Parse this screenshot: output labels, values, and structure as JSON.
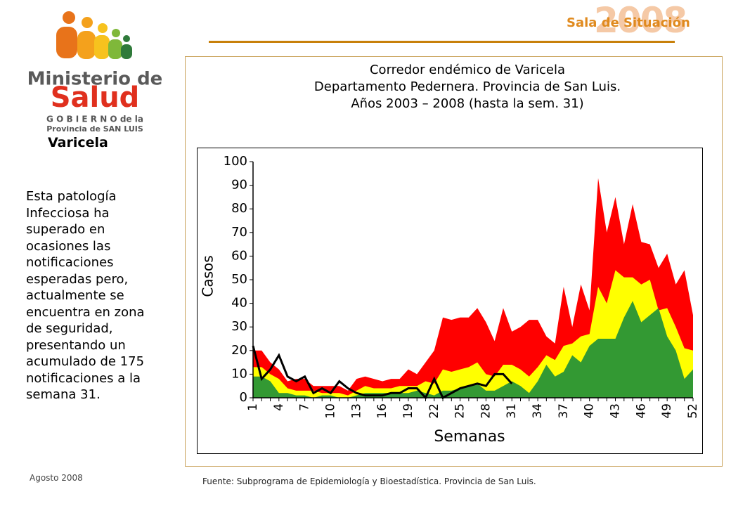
{
  "header": {
    "brand": "Sala de Situación",
    "year": "2008"
  },
  "logo": {
    "line1": "Ministerio de",
    "line2": "Salud",
    "line3": "G O B I E R N O  de la",
    "line4": "Provincia de SAN LUIS"
  },
  "sidebar": {
    "heading": "Varicela",
    "body": [
      "Esta patología",
      "Infecciosa ha",
      "superado en",
      "ocasiones las",
      "notificaciones",
      "esperadas pero,",
      "actualmente se",
      "encuentra en zona",
      "de seguridad,",
      "presentando un",
      "acumulado de 175",
      "notificaciones a la",
      "semana 31."
    ],
    "date": "Agosto 2008"
  },
  "source": "Fuente: Subprograma de Epidemiología y Bioestadística. Provincia de San Luis.",
  "chart_data": {
    "type": "area",
    "title": [
      "Corredor endémico de Varicela",
      "Departamento Pedernera. Provincia de San Luis.",
      "Años 2003 – 2008 (hasta la sem. 31)"
    ],
    "ylabel": "Casos",
    "xlabel": "Semanas",
    "categories": [
      1,
      null,
      null,
      4,
      null,
      null,
      7,
      null,
      null,
      10,
      null,
      null,
      13,
      null,
      null,
      16,
      null,
      null,
      19,
      null,
      null,
      22,
      null,
      null,
      25,
      null,
      null,
      28,
      null,
      null,
      31,
      null,
      null,
      34,
      null,
      null,
      37,
      null,
      null,
      40,
      null,
      null,
      43,
      null,
      null,
      46,
      null,
      null,
      49,
      null,
      null,
      52
    ],
    "ylim": [
      0,
      100
    ],
    "yticks": [
      0,
      10,
      20,
      30,
      40,
      50,
      60,
      70,
      80,
      90,
      100
    ],
    "series": [
      {
        "color": "#ff0000",
        "type": "area",
        "values": [
          20,
          20,
          15,
          12,
          7,
          8,
          8,
          5,
          5,
          5,
          5,
          3,
          8,
          9,
          8,
          7,
          8,
          8,
          12,
          10,
          15,
          20,
          34,
          33,
          34,
          34,
          38,
          32,
          24,
          38,
          28,
          30,
          33,
          33,
          26,
          23,
          47,
          30,
          48,
          37,
          93,
          70,
          85,
          65,
          82,
          66,
          65,
          55,
          61,
          48,
          54,
          35
        ]
      },
      {
        "color": "#ffff00",
        "type": "area",
        "values": [
          13,
          13,
          10,
          8,
          4,
          3,
          3,
          3,
          2,
          2,
          2,
          1,
          3,
          5,
          4,
          4,
          4,
          5,
          5,
          5,
          7,
          6,
          12,
          11,
          12,
          13,
          15,
          10,
          9,
          14,
          14,
          12,
          9,
          13,
          18,
          16,
          22,
          23,
          26,
          27,
          47,
          40,
          54,
          51,
          51,
          48,
          50,
          37,
          38,
          30,
          21,
          20
        ]
      },
      {
        "color": "#339933",
        "type": "area",
        "values": [
          9,
          9,
          7,
          2,
          2,
          1,
          1,
          0,
          1,
          1,
          0,
          0,
          1,
          2,
          2,
          2,
          2,
          2,
          2,
          3,
          2,
          1,
          3,
          3,
          4,
          5,
          6,
          3,
          3,
          5,
          7,
          5,
          2,
          7,
          14,
          9,
          11,
          18,
          15,
          22,
          25,
          25,
          25,
          34,
          41,
          32,
          35,
          38,
          26,
          20,
          8,
          12
        ]
      },
      {
        "color": "#000000",
        "type": "line",
        "values": [
          22,
          8,
          12,
          18,
          9,
          7,
          9,
          2,
          4,
          2,
          7,
          4,
          2,
          1,
          1,
          1,
          2,
          2,
          4,
          4,
          0,
          8,
          0,
          2,
          4,
          5,
          6,
          5,
          10,
          10,
          6,
          null,
          null,
          null,
          null,
          null,
          null,
          null,
          null,
          null,
          null,
          null,
          null,
          null,
          null,
          null,
          null,
          null,
          null,
          null,
          null,
          null
        ]
      }
    ]
  }
}
